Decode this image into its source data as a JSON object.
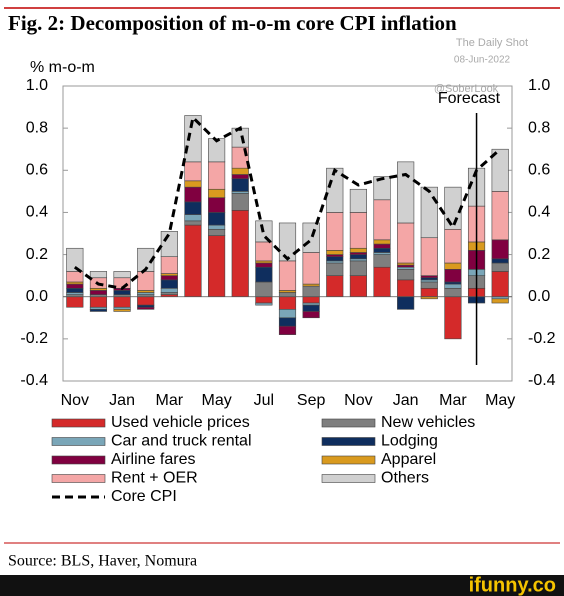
{
  "chart_data": {
    "type": "stacked_bar_line",
    "title": "Fig. 2:  Decomposition of m-o-m core CPI inflation",
    "y_axis_label": "% m-o-m",
    "annotation": "Forecast",
    "source": "Source: BLS, Haver, Nomura",
    "watermarks": [
      "The Daily Shot",
      "08-Jun-2022",
      "@SoberLook"
    ],
    "footer_logo": "ifunny.co",
    "categories": [
      "Nov",
      null,
      "Jan",
      null,
      "Mar",
      null,
      "May",
      null,
      "Jul",
      null,
      "Sep",
      null,
      "Nov",
      null,
      "Jan",
      null,
      "Mar",
      null,
      "May"
    ],
    "ylim": [
      -0.4,
      1.0
    ],
    "yticks": [
      -0.4,
      -0.2,
      {
        "value": 0,
        "label": "0.0"
      },
      0.2,
      0.4,
      0.6,
      0.8,
      {
        "value": 1,
        "label": "1.0"
      }
    ],
    "series": [
      {
        "name": "Used vehicle prices",
        "color": "#d42a2a",
        "values": [
          -0.05,
          -0.05,
          -0.05,
          -0.04,
          0.01,
          0.34,
          0.29,
          0.41,
          -0.03,
          -0.06,
          -0.03,
          0.1,
          0.1,
          0.14,
          0.08,
          0.04,
          -0.2,
          0.04,
          0.12
        ]
      },
      {
        "name": "New vehicles",
        "color": "#7f7f7f",
        "values": [
          0.01,
          0.01,
          0.01,
          0.01,
          0.01,
          0.02,
          0.03,
          0.08,
          0.07,
          0.02,
          0.05,
          0.06,
          0.07,
          0.06,
          0.05,
          0.03,
          0.04,
          0.06,
          0.04
        ]
      },
      {
        "name": "Car and truck rental",
        "color": "#7aa6b8",
        "values": [
          0.01,
          -0.01,
          -0.01,
          0.01,
          0.02,
          0.03,
          0.02,
          0.01,
          -0.01,
          -0.04,
          -0.01,
          0.01,
          0.01,
          0.01,
          0.01,
          0.01,
          0.02,
          0.03,
          -0.01
        ]
      },
      {
        "name": "Lodging",
        "color": "#0f2e5e",
        "values": [
          0.02,
          -0.01,
          0.02,
          -0.01,
          0.04,
          0.06,
          0.06,
          0.06,
          0.07,
          -0.04,
          -0.03,
          0.02,
          0.02,
          0.02,
          -0.06,
          0.01,
          0.01,
          -0.03,
          0.02
        ]
      },
      {
        "name": "Airline fares",
        "color": "#800040",
        "values": [
          0.02,
          0.02,
          0.01,
          -0.01,
          0.02,
          0.07,
          0.07,
          0.02,
          0.02,
          -0.04,
          -0.03,
          0.01,
          0.01,
          0.02,
          0.01,
          0.01,
          0.06,
          0.09,
          0.09
        ]
      },
      {
        "name": "Apparel",
        "color": "#d99a1f",
        "values": [
          0.01,
          0.01,
          -0.01,
          0.01,
          0.01,
          0.03,
          0.04,
          0.03,
          0.01,
          0.01,
          0.01,
          0.02,
          0.02,
          0.02,
          0.01,
          -0.01,
          0.03,
          0.04,
          -0.02
        ]
      },
      {
        "name": "Rent + OER",
        "color": "#f4a6a6",
        "values": [
          0.05,
          0.05,
          0.05,
          0.09,
          0.08,
          0.09,
          0.13,
          0.1,
          0.09,
          0.14,
          0.15,
          0.18,
          0.17,
          0.19,
          0.19,
          0.18,
          0.16,
          0.17,
          0.23
        ]
      },
      {
        "name": "Others",
        "color": "#d0d0d0",
        "values": [
          0.11,
          0.03,
          0.03,
          0.11,
          0.12,
          0.22,
          0.11,
          0.09,
          0.1,
          0.18,
          0.14,
          0.21,
          0.11,
          0.11,
          0.29,
          0.24,
          0.2,
          0.18,
          0.2
        ]
      }
    ],
    "line": {
      "name": "Core CPI",
      "color": "#000000",
      "values": [
        0.14,
        0.06,
        0.04,
        0.13,
        0.3,
        0.85,
        0.74,
        0.8,
        0.29,
        0.18,
        0.27,
        0.6,
        0.53,
        0.56,
        0.58,
        0.5,
        0.33,
        0.6,
        0.7
      ]
    }
  }
}
